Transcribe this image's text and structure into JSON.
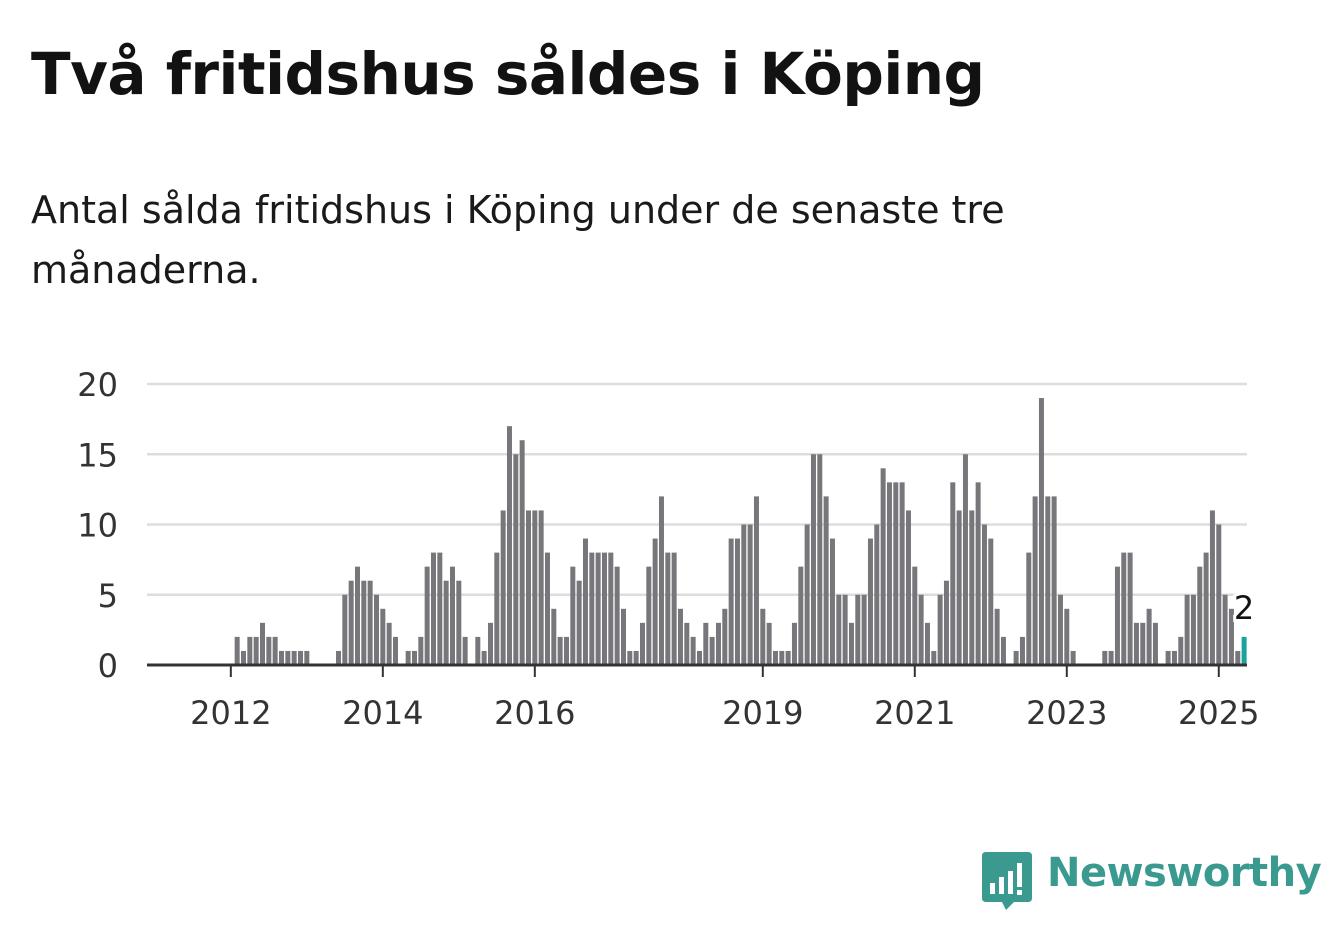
{
  "chart_data": {
    "type": "bar",
    "title": "Två fritidshus såldes i Köping",
    "subtitle": "Antal sålda fritidshus i Köping under de senaste tre månaderna.",
    "xlabel": "",
    "ylabel": "",
    "ylim": [
      0,
      20
    ],
    "yticks": [
      "0",
      "5",
      "10",
      "15",
      "20"
    ],
    "grid": true,
    "x_tick_labels": [
      "2012",
      "2014",
      "2016",
      "2019",
      "2021",
      "2023",
      "2025"
    ],
    "x_tick_index": [
      7,
      31,
      55,
      91,
      115,
      139,
      163
    ],
    "start_month": "2011-01",
    "end_month": "2025-01",
    "values": [
      0,
      0,
      0,
      0,
      0,
      0,
      0,
      0,
      2,
      1,
      2,
      2,
      3,
      2,
      2,
      1,
      1,
      1,
      1,
      1,
      0,
      0,
      0,
      0,
      1,
      5,
      6,
      7,
      6,
      6,
      5,
      4,
      3,
      2,
      0,
      1,
      1,
      2,
      7,
      8,
      8,
      6,
      7,
      6,
      2,
      0,
      2,
      1,
      3,
      8,
      11,
      17,
      15,
      16,
      11,
      11,
      11,
      8,
      4,
      2,
      2,
      7,
      6,
      9,
      8,
      8,
      8,
      8,
      7,
      4,
      1,
      1,
      3,
      7,
      9,
      12,
      8,
      8,
      4,
      3,
      2,
      1,
      3,
      2,
      3,
      4,
      9,
      9,
      10,
      10,
      12,
      4,
      3,
      1,
      1,
      1,
      3,
      7,
      10,
      15,
      15,
      12,
      9,
      5,
      5,
      3,
      5,
      5,
      9,
      10,
      14,
      13,
      13,
      13,
      11,
      7,
      5,
      3,
      1,
      5,
      6,
      13,
      11,
      15,
      11,
      13,
      10,
      9,
      4,
      2,
      0,
      1,
      2,
      8,
      12,
      19,
      12,
      12,
      5,
      4,
      1,
      0,
      0,
      0,
      0,
      1,
      1,
      7,
      8,
      8,
      3,
      3,
      4,
      3,
      0,
      1,
      1,
      2,
      5,
      5,
      7,
      8,
      11,
      10,
      5,
      4,
      1,
      2
    ],
    "bar_color": "#77767b",
    "highlight_color": "#1aa39a",
    "highlight_label": "2",
    "axis_color": "#333333",
    "grid_color": "#dddddd"
  },
  "branding": {
    "name": "Newsworthy",
    "color": "#3a9a8f"
  }
}
